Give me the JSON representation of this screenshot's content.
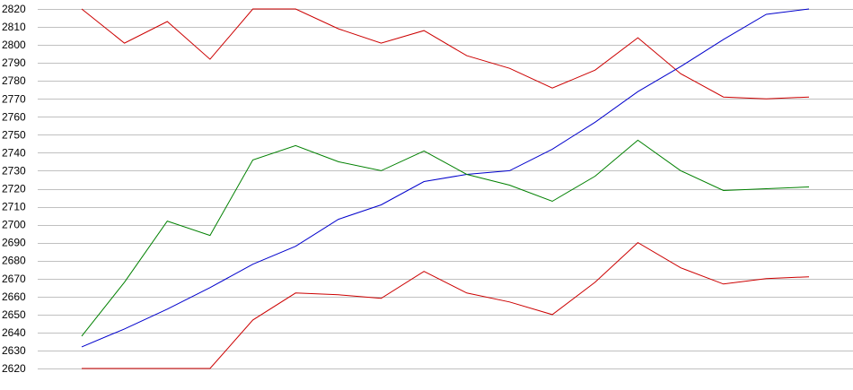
{
  "chart_data": {
    "type": "line",
    "title": "",
    "xlabel": "",
    "ylabel": "",
    "ylim": [
      2620,
      2820
    ],
    "y_ticks": [
      2620,
      2630,
      2640,
      2650,
      2660,
      2670,
      2680,
      2690,
      2700,
      2710,
      2720,
      2730,
      2740,
      2750,
      2760,
      2770,
      2780,
      2790,
      2800,
      2810,
      2820
    ],
    "x": [
      1,
      2,
      3,
      4,
      5,
      6,
      7,
      8,
      9,
      10,
      11,
      12,
      13,
      14,
      15,
      16,
      17,
      18
    ],
    "grid": "horizontal",
    "legend": "none",
    "series": [
      {
        "color": "#cc0000",
        "values": [
          2820,
          2801,
          2813,
          2792,
          2820,
          2820,
          2809,
          2801,
          2808,
          2794,
          2787,
          2776,
          2786,
          2804,
          2784,
          2771,
          2770,
          2771
        ]
      },
      {
        "color": "#0000cc",
        "values": [
          2632,
          2642,
          2653,
          2665,
          2678,
          2688,
          2703,
          2711,
          2724,
          2728,
          2730,
          2742,
          2757,
          2774,
          2788,
          2803,
          2817,
          2820
        ]
      },
      {
        "color": "#008000",
        "values": [
          2638,
          2668,
          2702,
          2694,
          2736,
          2744,
          2735,
          2730,
          2741,
          2728,
          2722,
          2713,
          2727,
          2747,
          2730,
          2719,
          2720,
          2721
        ]
      },
      {
        "color": "#cc0000",
        "values": [
          2620,
          2620,
          2620,
          2620,
          2647,
          2662,
          2661,
          2659,
          2674,
          2662,
          2657,
          2650,
          2668,
          2690,
          2676,
          2667,
          2670,
          2671
        ]
      }
    ]
  }
}
